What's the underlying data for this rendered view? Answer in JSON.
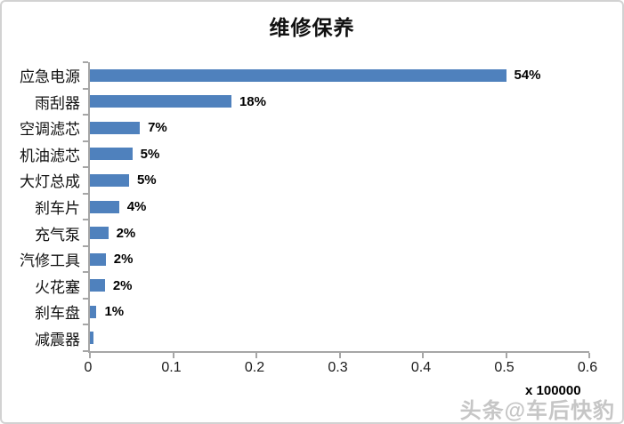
{
  "chart_data": {
    "type": "bar",
    "orientation": "horizontal",
    "title": "维修保养",
    "categories": [
      "应急电源",
      "雨刮器",
      "空调滤芯",
      "机油滤芯",
      "大灯总成",
      "刹车片",
      "充气泵",
      "汽修工具",
      "火花塞",
      "刹车盘",
      "减震器"
    ],
    "values": [
      0.5,
      0.17,
      0.06,
      0.051,
      0.047,
      0.035,
      0.022,
      0.019,
      0.018,
      0.008,
      0.004
    ],
    "data_labels": [
      "54%",
      "18%",
      "7%",
      "5%",
      "5%",
      "4%",
      "2%",
      "2%",
      "2%",
      "1%",
      ""
    ],
    "xlabel": "",
    "ylabel": "",
    "xlim": [
      0,
      0.6
    ],
    "x_tick_values": [
      0,
      0.1,
      0.2,
      0.3,
      0.4,
      0.5,
      0.6
    ],
    "x_tick_labels": [
      "0",
      "0.1",
      "0.2",
      "0.3",
      "0.4",
      "0.5",
      "0.6"
    ],
    "axis_multiplier_label": "x 100000",
    "bar_color": "#4f81bd",
    "axis_color": "#a6a6a6",
    "grid": false,
    "legend": false
  },
  "watermark": {
    "text": "头条@车后快豹",
    "color": "#c6c6c6"
  }
}
